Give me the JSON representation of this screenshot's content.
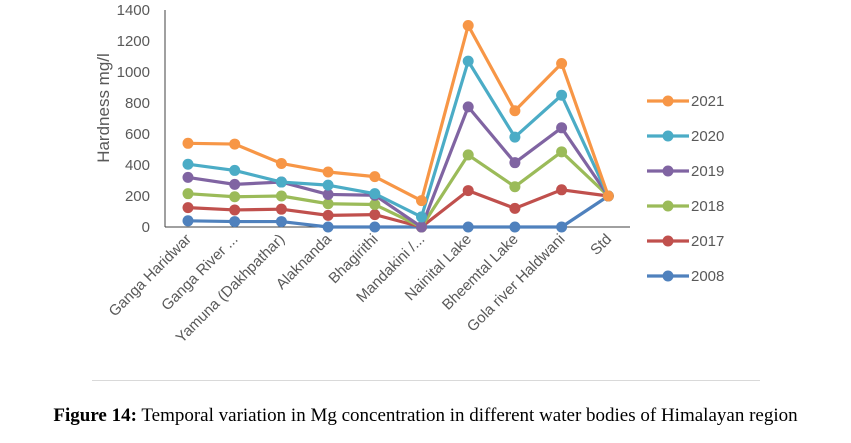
{
  "chart_data": {
    "type": "line",
    "title": "",
    "xlabel": "",
    "ylabel": "Hardness mg/l",
    "ylim": [
      0,
      1400
    ],
    "yticks": [
      "0",
      "200",
      "400",
      "600",
      "800",
      "1000",
      "1200",
      "1400"
    ],
    "grid": false,
    "legend_position": "right",
    "categories": [
      "Ganga Haridwar",
      "Ganga River ...",
      "Yamuna (Dakhpathar)",
      "Alaknanda",
      "Bhagirithi",
      "Mandakini /...",
      "Nainital Lake",
      "Bheemtal Lake",
      "Gola river Haldwani",
      "Std"
    ],
    "series": [
      {
        "name": "2021",
        "color": "#f79646",
        "values": [
          540,
          535,
          410,
          355,
          325,
          170,
          1300,
          750,
          1055,
          200
        ]
      },
      {
        "name": "2020",
        "color": "#4bacc6",
        "values": [
          405,
          365,
          290,
          270,
          215,
          65,
          1070,
          580,
          850,
          200
        ]
      },
      {
        "name": "2019",
        "color": "#8064a2",
        "values": [
          320,
          275,
          290,
          210,
          205,
          0,
          775,
          415,
          640,
          200
        ]
      },
      {
        "name": "2018",
        "color": "#9bbb59",
        "values": [
          215,
          195,
          200,
          150,
          145,
          0,
          465,
          260,
          485,
          200
        ]
      },
      {
        "name": "2017",
        "color": "#c0504d",
        "values": [
          125,
          110,
          115,
          75,
          80,
          0,
          235,
          120,
          240,
          200
        ]
      },
      {
        "name": "2008",
        "color": "#4f81bd",
        "values": [
          40,
          35,
          35,
          0,
          0,
          0,
          0,
          0,
          0,
          200
        ]
      }
    ]
  },
  "caption": {
    "label": "Figure 14:",
    "text": " Temporal variation in Mg concentration in different water bodies of Himalayan region"
  }
}
